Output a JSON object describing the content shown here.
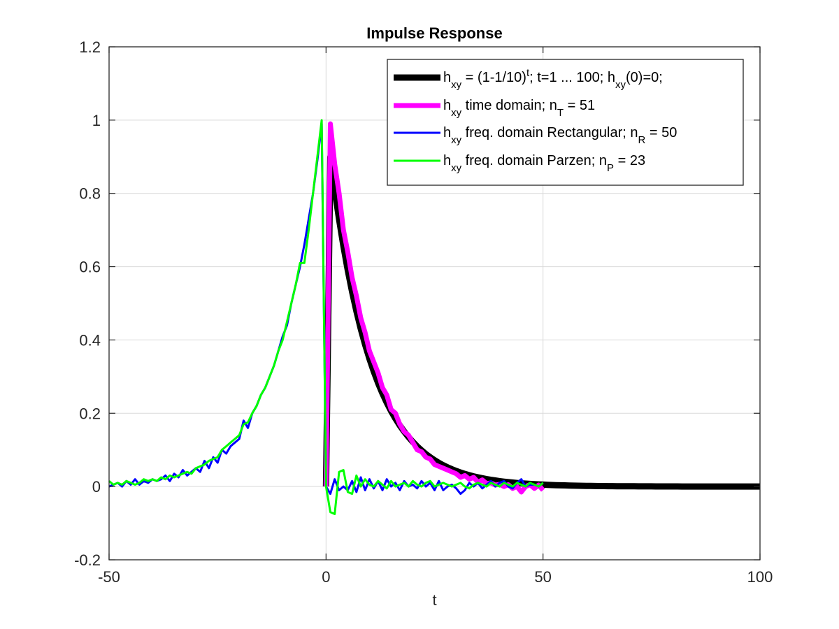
{
  "chart_data": {
    "type": "line",
    "title": "Impulse Response",
    "xlabel": "t",
    "ylabel": "",
    "xlim": [
      -50,
      100
    ],
    "ylim": [
      -0.2,
      1.2
    ],
    "xticks": [
      -50,
      0,
      50,
      100
    ],
    "xtick_labels": [
      "-50",
      "0",
      "50",
      "100"
    ],
    "yticks": [
      -0.2,
      0,
      0.2,
      0.4,
      0.6,
      0.8,
      1,
      1.2
    ],
    "ytick_labels": [
      "-0.2",
      "0",
      "0.2",
      "0.4",
      "0.6",
      "0.8",
      "1",
      "1.2"
    ],
    "grid": true,
    "legend_position": "top-right",
    "series": [
      {
        "name": "h_xy = (1-1/10)^t; t=1 ... 100; h_xy(0)=0;",
        "color": "#000000",
        "formula": "exp_decay",
        "decay_factor": 0.9,
        "t_range": [
          1,
          100
        ],
        "h_at_0": 0
      },
      {
        "name": "h_xy time domain; n_T = 51",
        "color": "#ff00ff",
        "x": [
          0,
          1,
          2,
          3,
          4,
          5,
          6,
          7,
          8,
          9,
          10,
          11,
          12,
          13,
          14,
          15,
          16,
          17,
          18,
          19,
          20,
          21,
          22,
          23,
          24,
          25,
          26,
          27,
          28,
          29,
          30,
          31,
          32,
          33,
          34,
          35,
          36,
          37,
          38,
          39,
          40,
          41,
          42,
          43,
          44,
          45,
          46,
          47,
          48,
          49,
          50
        ],
        "y": [
          0,
          0.99,
          0.88,
          0.8,
          0.7,
          0.64,
          0.57,
          0.52,
          0.46,
          0.42,
          0.37,
          0.34,
          0.31,
          0.27,
          0.25,
          0.21,
          0.2,
          0.17,
          0.15,
          0.14,
          0.12,
          0.1,
          0.095,
          0.08,
          0.075,
          0.06,
          0.055,
          0.05,
          0.045,
          0.04,
          0.035,
          0.025,
          0.03,
          0.02,
          0.025,
          0.012,
          0.018,
          0.008,
          0.01,
          0.004,
          0.006,
          0.0,
          0.005,
          -0.005,
          0.0,
          -0.015,
          0.0,
          0.005,
          -0.005,
          0.004,
          -0.01
        ]
      },
      {
        "name": "h_xy freq. domain Rectangular; n_R = 50",
        "color": "#0000ff",
        "x": [
          -50,
          -49,
          -48,
          -47,
          -46,
          -45,
          -44,
          -43,
          -42,
          -41,
          -40,
          -39,
          -38,
          -37,
          -36,
          -35,
          -34,
          -33,
          -32,
          -31,
          -30,
          -29,
          -28,
          -27,
          -26,
          -25,
          -24,
          -23,
          -22,
          -21,
          -20,
          -19,
          -18,
          -17,
          -16,
          -15,
          -14,
          -13,
          -12,
          -11,
          -10,
          -9,
          -8,
          -7,
          -6,
          -5,
          -4,
          -3,
          -2,
          -1,
          0,
          1,
          2,
          3,
          4,
          5,
          6,
          7,
          8,
          9,
          10,
          11,
          12,
          13,
          14,
          15,
          16,
          17,
          18,
          19,
          20,
          21,
          22,
          23,
          24,
          25,
          26,
          27,
          28,
          29,
          30,
          31,
          32,
          33,
          34,
          35,
          36,
          37,
          38,
          39,
          40,
          41,
          42,
          43,
          44,
          45,
          46,
          47,
          48,
          49,
          50
        ],
        "y": [
          0,
          0.005,
          0.01,
          0.0,
          0.015,
          0.005,
          0.02,
          0.005,
          0.015,
          0.01,
          0.02,
          0.015,
          0.02,
          0.03,
          0.015,
          0.035,
          0.025,
          0.045,
          0.03,
          0.04,
          0.05,
          0.04,
          0.07,
          0.05,
          0.08,
          0.065,
          0.1,
          0.09,
          0.11,
          0.12,
          0.13,
          0.18,
          0.16,
          0.2,
          0.22,
          0.25,
          0.27,
          0.3,
          0.33,
          0.37,
          0.41,
          0.44,
          0.5,
          0.55,
          0.6,
          0.66,
          0.73,
          0.8,
          0.89,
          0.99,
          0.0,
          -0.02,
          0.02,
          -0.01,
          0.0,
          -0.01,
          0.015,
          -0.015,
          0.025,
          -0.01,
          0.02,
          -0.005,
          0.015,
          -0.01,
          0.02,
          0.0,
          0.01,
          -0.01,
          0.015,
          0.0,
          0.005,
          -0.005,
          0.015,
          0.0,
          0.01,
          -0.01,
          0.015,
          -0.01,
          0.0,
          0.005,
          -0.005,
          -0.02,
          -0.01,
          0.01,
          0.0,
          0.01,
          -0.005,
          0.005,
          0.015,
          0.0,
          0.01,
          0.015,
          0.0,
          -0.005,
          0.01,
          0.02,
          0.0,
          0.005,
          0.005,
          0.0,
          0.01
        ]
      },
      {
        "name": "h_xy freq. domain Parzen; n_P = 23",
        "color": "#00ff00",
        "x": [
          -50,
          -49,
          -48,
          -47,
          -46,
          -45,
          -44,
          -43,
          -42,
          -41,
          -40,
          -39,
          -38,
          -37,
          -36,
          -35,
          -34,
          -33,
          -32,
          -31,
          -30,
          -29,
          -28,
          -27,
          -26,
          -25,
          -24,
          -23,
          -22,
          -21,
          -20,
          -19,
          -18,
          -17,
          -16,
          -15,
          -14,
          -13,
          -12,
          -11,
          -10,
          -9,
          -8,
          -7,
          -6,
          -5,
          -4,
          -3,
          -2,
          -1,
          0,
          1,
          2,
          3,
          4,
          5,
          6,
          7,
          8,
          9,
          10,
          11,
          12,
          13,
          14,
          15,
          16,
          17,
          18,
          19,
          20,
          21,
          22,
          23,
          24,
          25,
          26,
          27,
          28,
          29,
          30,
          31,
          32,
          33,
          34,
          35,
          36,
          37,
          38,
          39,
          40,
          41,
          42,
          43,
          44,
          45,
          46,
          47,
          48,
          49,
          50
        ],
        "y": [
          0.015,
          0.005,
          0.01,
          0.005,
          0.015,
          0.01,
          0.005,
          0.01,
          0.02,
          0.015,
          0.02,
          0.015,
          0.025,
          0.02,
          0.03,
          0.025,
          0.03,
          0.035,
          0.04,
          0.035,
          0.05,
          0.055,
          0.06,
          0.07,
          0.075,
          0.08,
          0.1,
          0.11,
          0.12,
          0.13,
          0.14,
          0.17,
          0.175,
          0.2,
          0.22,
          0.25,
          0.27,
          0.3,
          0.33,
          0.37,
          0.4,
          0.45,
          0.5,
          0.55,
          0.61,
          0.61,
          0.7,
          0.8,
          0.9,
          1.0,
          0.0,
          -0.07,
          -0.075,
          0.04,
          0.045,
          -0.015,
          -0.02,
          0.03,
          0.0,
          0.02,
          0.005,
          0.0,
          0.015,
          0.005,
          -0.005,
          0.015,
          0.0,
          0.005,
          0.01,
          0.0,
          0.015,
          0.005,
          0.0,
          0.01,
          0.015,
          0.0,
          0.005,
          0.01,
          0.005,
          0.0,
          0.005,
          0.01,
          0.0,
          -0.005,
          0.005,
          0.01,
          0.005,
          0.0,
          0.01,
          0.005,
          0.0,
          0.01,
          0.005,
          0.0,
          0.01,
          0.005,
          0.0,
          0.01,
          0.005,
          0.0,
          0.01
        ]
      }
    ],
    "legend_entries": [
      {
        "base": "h",
        "sub": "xy",
        "parts": [
          " = (1-1/10)",
          {
            "sup": "t"
          },
          "; t=1 ... 100; h",
          {
            "sub": "xy"
          },
          "(0)=0;"
        ]
      },
      {
        "base": "h",
        "sub": "xy",
        "parts": [
          " time domain; n",
          {
            "sub": "T"
          },
          " = 51"
        ]
      },
      {
        "base": "h",
        "sub": "xy",
        "parts": [
          " freq. domain Rectangular; n",
          {
            "sub": "R"
          },
          " = 50"
        ]
      },
      {
        "base": "h",
        "sub": "xy",
        "parts": [
          " freq. domain Parzen; n",
          {
            "sub": "P"
          },
          " = 23"
        ]
      }
    ]
  }
}
